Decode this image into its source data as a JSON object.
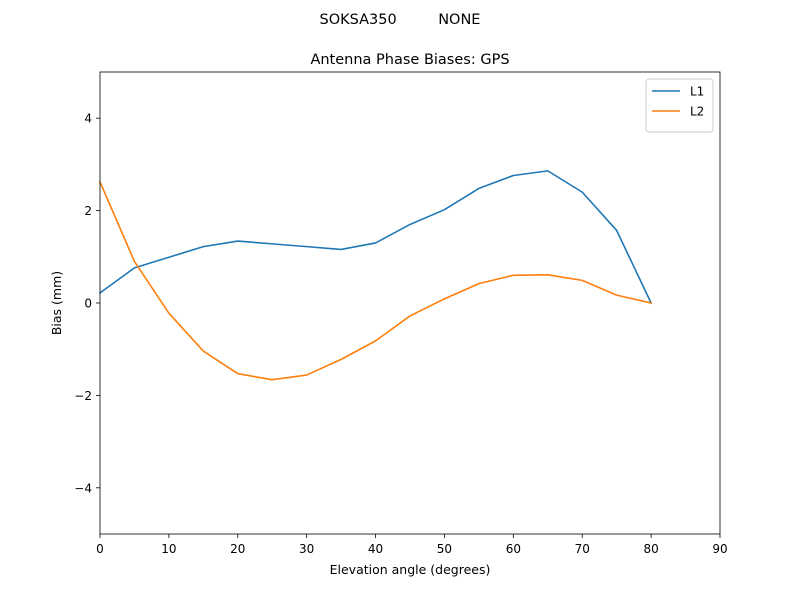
{
  "chart_data": {
    "type": "line",
    "suptitle": "SOKSA350         NONE",
    "title": "Antenna Phase Biases: GPS",
    "xlabel": "Elevation angle (degrees)",
    "ylabel": "Bias (mm)",
    "xlim": [
      0,
      90
    ],
    "ylim": [
      -5,
      5
    ],
    "xticks": [
      0,
      10,
      20,
      30,
      40,
      50,
      60,
      70,
      80,
      90
    ],
    "yticks": [
      -4,
      -2,
      0,
      2,
      4
    ],
    "grid": false,
    "legend_position": "upper-right",
    "x": [
      0,
      5,
      10,
      15,
      20,
      25,
      30,
      35,
      40,
      45,
      50,
      55,
      60,
      65,
      70,
      75,
      80
    ],
    "series": [
      {
        "name": "L1",
        "color": "#1f77b4",
        "values": [
          0.22,
          0.76,
          0.99,
          1.22,
          1.34,
          1.28,
          1.22,
          1.16,
          1.3,
          1.7,
          2.02,
          2.48,
          2.76,
          2.86,
          2.4,
          1.57,
          0.0
        ]
      },
      {
        "name": "L2",
        "color": "#ff7f0e",
        "values": [
          2.62,
          0.9,
          -0.22,
          -1.04,
          -1.53,
          -1.66,
          -1.56,
          -1.22,
          -0.82,
          -0.28,
          0.09,
          0.42,
          0.6,
          0.61,
          0.49,
          0.17,
          0.0
        ]
      }
    ]
  }
}
